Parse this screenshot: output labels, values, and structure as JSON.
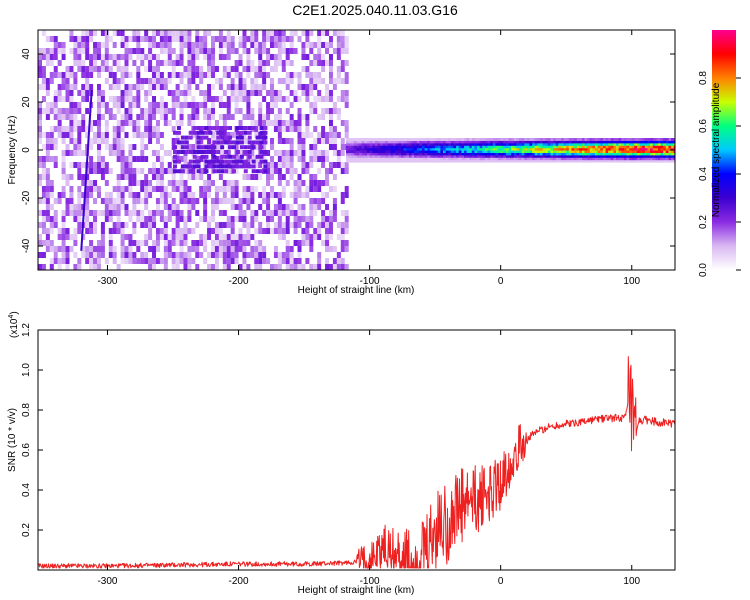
{
  "title": "C2E1.2025.040.11.03.G16",
  "chart_data": [
    {
      "type": "heatmap",
      "xlabel": "Height of straight line (km)",
      "ylabel": "Frequency (Hz)",
      "xlim": [
        -353,
        133
      ],
      "ylim": [
        -50,
        50
      ],
      "xticks": [
        -300,
        -200,
        -100,
        0,
        100
      ],
      "yticks": [
        -40,
        -20,
        0,
        20,
        40
      ],
      "colorbar": {
        "label": "Normalized spectral amplitude",
        "range": [
          0.0,
          1.0
        ],
        "ticks": [
          "0.0",
          "0.2",
          "0.4",
          "0.6",
          "0.8"
        ],
        "tick_values": [
          0.0,
          0.2,
          0.4,
          0.6,
          0.8
        ],
        "colors": [
          "#ffffff",
          "#d9b8f2",
          "#8a2be2",
          "#3c00d0",
          "#0000ff",
          "#00c8ff",
          "#00ff80",
          "#c8ff00",
          "#ff8000",
          "#ff0000",
          "#ff0090"
        ]
      },
      "regions": [
        {
          "x_range": [
            -353,
            -118
          ],
          "y_range": [
            -50,
            50
          ],
          "description": "broadband noise, amplitude 0.05-0.2"
        },
        {
          "x_range": [
            -118,
            133
          ],
          "y_range": [
            -5,
            5
          ],
          "description": "narrow band near 0 Hz, amplitude rising to ~0.9"
        }
      ],
      "features": [
        {
          "name": "tilted streak",
          "x": [
            -320,
            -312
          ],
          "y": [
            -42,
            25
          ],
          "amplitude": 0.3
        }
      ]
    },
    {
      "type": "line",
      "xlabel": "Height of straight line (km)",
      "ylabel": "SNR (10 * v/v)",
      "y_multiplier": "(x10",
      "y_multiplier_exp": "4",
      "y_multiplier_close": ")",
      "xlim": [
        -353,
        133
      ],
      "ylim": [
        0,
        1.2
      ],
      "xticks": [
        -300,
        -200,
        -100,
        0,
        100
      ],
      "yticks": [
        "0.2",
        "0.4",
        "0.6",
        "0.8",
        "1.0",
        "1.2"
      ],
      "ytick_values": [
        0.2,
        0.4,
        0.6,
        0.8,
        1.0,
        1.2
      ],
      "series": [
        {
          "color": "#ee2020",
          "x": [
            -353,
            -300,
            -250,
            -200,
            -150,
            -120,
            -110,
            -100,
            -95,
            -90,
            -85,
            -80,
            -75,
            -70,
            -65,
            -60,
            -55,
            -50,
            -45,
            -40,
            -35,
            -30,
            -25,
            -20,
            -15,
            -10,
            -5,
            0,
            5,
            10,
            15,
            20,
            25,
            30,
            40,
            50,
            60,
            70,
            80,
            90,
            95,
            98,
            100,
            102,
            105,
            110,
            120,
            133
          ],
          "values": [
            0.02,
            0.02,
            0.025,
            0.03,
            0.03,
            0.035,
            0.04,
            0.05,
            0.08,
            0.12,
            0.09,
            0.07,
            0.06,
            0.04,
            0.03,
            0.06,
            0.1,
            0.18,
            0.22,
            0.25,
            0.28,
            0.3,
            0.32,
            0.34,
            0.36,
            0.38,
            0.4,
            0.44,
            0.5,
            0.58,
            0.63,
            0.65,
            0.68,
            0.7,
            0.72,
            0.73,
            0.74,
            0.75,
            0.76,
            0.76,
            0.76,
            0.85,
            0.75,
            0.6,
            0.74,
            0.75,
            0.74,
            0.73
          ]
        }
      ]
    }
  ]
}
